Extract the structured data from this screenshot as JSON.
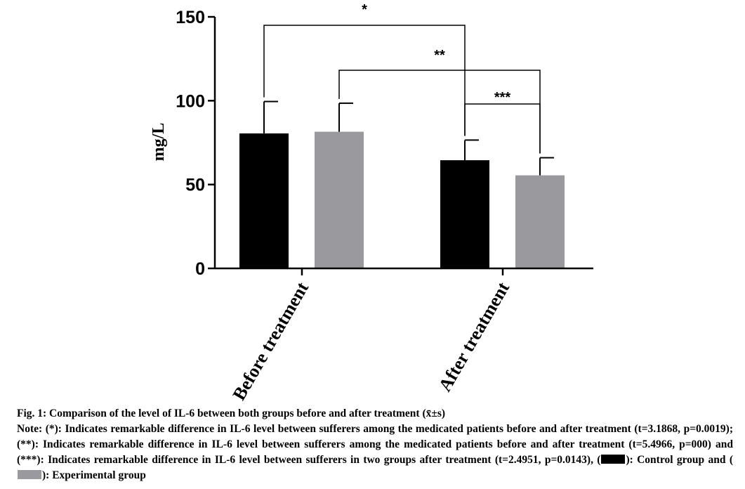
{
  "chart_data": {
    "type": "bar",
    "ylabel": "mg/L",
    "ylim": [
      0,
      150
    ],
    "yticks": [
      0,
      50,
      100,
      150
    ],
    "categories": [
      "Before treatment",
      "After treatment"
    ],
    "series": [
      {
        "name": "Control group",
        "color": "#000000",
        "values": [
          80.5,
          64.5
        ],
        "errors": [
          19,
          12
        ]
      },
      {
        "name": "Experimental group",
        "color": "#9a9a9e",
        "values": [
          81.5,
          55.5
        ],
        "errors": [
          17,
          10.5
        ]
      }
    ],
    "significance": [
      {
        "label": "*",
        "from": {
          "series": 0,
          "category": 0
        },
        "to": {
          "series": 0,
          "category": 1
        }
      },
      {
        "label": "**",
        "from": {
          "series": 1,
          "category": 0
        },
        "to": {
          "series": 1,
          "category": 1
        }
      },
      {
        "label": "***",
        "from": {
          "series": 0,
          "category": 1
        },
        "to": {
          "series": 1,
          "category": 1
        }
      }
    ]
  },
  "caption": {
    "title": "Fig. 1: Comparison of the level of IL-6 between both groups before and after treatment (x̄±s)",
    "note": "Note: (*): Indicates remarkable difference in IL-6 level between sufferers among the medicated patients before and after treatment (t=3.1868, p=0.0019); (**): Indicates remarkable difference in IL-6 level between sufferers among the medicated patients before and after treatment (t=5.4966, p=000) and (***): Indicates remarkable difference in IL-6 level between sufferers in two groups after treatment (t=2.4951, p=0.0143), (",
    "control_text": "): Control group and (",
    "experimental_text": "): Experimental group"
  }
}
